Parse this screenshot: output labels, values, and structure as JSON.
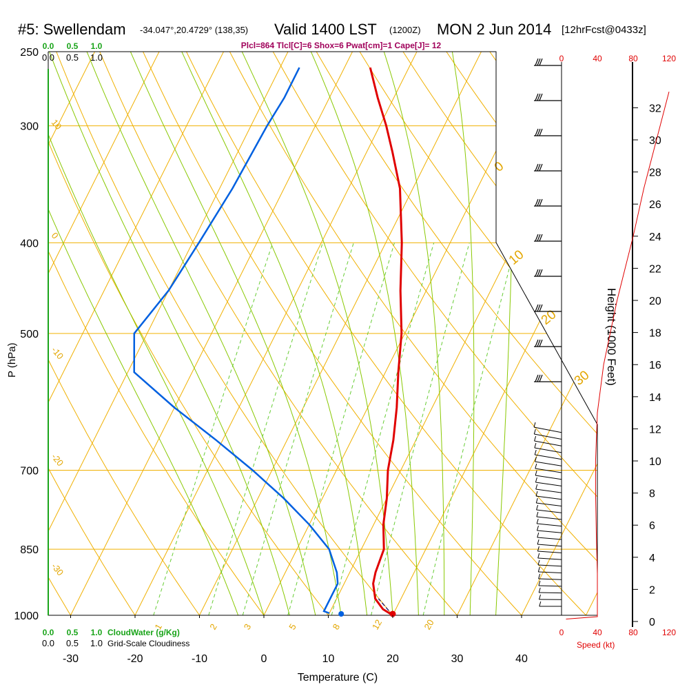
{
  "title": {
    "station": "#5: Swellendam",
    "coords": "-34.047°,20.4729° (138,35)",
    "valid": "Valid 1400 LST",
    "zulu": "(1200Z)",
    "date": "MON 2 Jun 2014",
    "forecast": "[12hrFcst@0433z]"
  },
  "indices": "Plcl=864 Tlcl[C]=6 Shox=6 Pwat[cm]=1 Cape[J]= 12",
  "colors": {
    "temperature": "#e00000",
    "dewpoint": "#0060e0",
    "isotherm_adiabat": "#f0b000",
    "moist_adiabat": "#88c800",
    "mixing_ratio": "#66cc33",
    "speed": "#e00000"
  },
  "chart_data": {
    "type": "skew-t",
    "xlabel": "Temperature (C)",
    "ylabel": "P (hPa)",
    "x_ticks": [
      "-30",
      "-20",
      "-10",
      "0",
      "10",
      "20",
      "30",
      "40"
    ],
    "x_tick_values": [
      -30,
      -20,
      -10,
      0,
      10,
      20,
      30,
      40
    ],
    "pressure_ticks": [
      "250",
      "300",
      "400",
      "500",
      "700",
      "850",
      "1000"
    ],
    "pressure_tick_values": [
      250,
      300,
      400,
      500,
      700,
      850,
      1000
    ],
    "height_axis_label": "Height (1000 Feet)",
    "height_ticks": [
      "0",
      "2",
      "4",
      "6",
      "8",
      "10",
      "12",
      "14",
      "16",
      "18",
      "20",
      "22",
      "24",
      "26",
      "28",
      "30",
      "32"
    ],
    "height_tick_values": [
      0,
      2,
      4,
      6,
      8,
      10,
      12,
      14,
      16,
      18,
      20,
      22,
      24,
      26,
      28,
      30,
      32
    ],
    "speed_axis_label": "Speed (kt)",
    "speed_ticks": [
      "0",
      "40",
      "80",
      "120"
    ],
    "cloud_scale_ticks": [
      "0.0",
      "0.5",
      "1.0"
    ],
    "cloudwater_label": "CloudWater (g/Kg)",
    "cloudiness_label": "Grid-Scale Cloudiness",
    "mixing_ratio_labels": [
      "1",
      "2",
      "3",
      "5",
      "8",
      "12",
      "20"
    ],
    "mixing_ratio_values": [
      1,
      2,
      3,
      5,
      8,
      12,
      20
    ],
    "dry_adiabat_labels": [
      "10",
      "0",
      "-10",
      "-20",
      "-30"
    ],
    "moist_adiabat_labels": [
      "0",
      "10",
      "20",
      "30"
    ],
    "temperature_profile": [
      {
        "p": 1000,
        "t": 20.0
      },
      {
        "p": 985,
        "t": 18.0
      },
      {
        "p": 960,
        "t": 16.0
      },
      {
        "p": 925,
        "t": 14.5
      },
      {
        "p": 900,
        "t": 14.0
      },
      {
        "p": 850,
        "t": 13.5
      },
      {
        "p": 800,
        "t": 11.5
      },
      {
        "p": 750,
        "t": 10.0
      },
      {
        "p": 700,
        "t": 8.0
      },
      {
        "p": 650,
        "t": 6.5
      },
      {
        "p": 600,
        "t": 4.5
      },
      {
        "p": 550,
        "t": 2.0
      },
      {
        "p": 500,
        "t": -0.5
      },
      {
        "p": 450,
        "t": -4.0
      },
      {
        "p": 400,
        "t": -7.5
      },
      {
        "p": 350,
        "t": -12.0
      },
      {
        "p": 320,
        "t": -16.0
      },
      {
        "p": 300,
        "t": -19.0
      },
      {
        "p": 280,
        "t": -22.5
      },
      {
        "p": 260,
        "t": -26.0
      }
    ],
    "dewpoint_profile": [
      {
        "p": 995,
        "t": 10.0
      },
      {
        "p": 990,
        "t": 9.0
      },
      {
        "p": 975,
        "t": 9.0
      },
      {
        "p": 950,
        "t": 9.0
      },
      {
        "p": 925,
        "t": 9.0
      },
      {
        "p": 900,
        "t": 8.0
      },
      {
        "p": 850,
        "t": 5.0
      },
      {
        "p": 800,
        "t": 0.0
      },
      {
        "p": 750,
        "t": -6.0
      },
      {
        "p": 700,
        "t": -13.0
      },
      {
        "p": 650,
        "t": -21.0
      },
      {
        "p": 600,
        "t": -30.0
      },
      {
        "p": 550,
        "t": -39.0
      },
      {
        "p": 500,
        "t": -42.0
      },
      {
        "p": 450,
        "t": -40.0
      },
      {
        "p": 400,
        "t": -39.0
      },
      {
        "p": 350,
        "t": -38.0
      },
      {
        "p": 300,
        "t": -37.5
      },
      {
        "p": 280,
        "t": -37.0
      },
      {
        "p": 260,
        "t": -37.0
      }
    ],
    "parcel_path": [
      {
        "p": 1000,
        "t": 20.0
      },
      {
        "p": 960,
        "t": 16.5
      }
    ],
    "surface_temperature": 20.0,
    "surface_dewpoint": 12.0,
    "wind_speed_profile": [
      {
        "h": 0.15,
        "kt": 5
      },
      {
        "h": 0.3,
        "kt": 40
      },
      {
        "h": 1.0,
        "kt": 40
      },
      {
        "h": 3.0,
        "kt": 40
      },
      {
        "h": 5.0,
        "kt": 39
      },
      {
        "h": 8.0,
        "kt": 38
      },
      {
        "h": 10.0,
        "kt": 38
      },
      {
        "h": 11.5,
        "kt": 39
      },
      {
        "h": 13.0,
        "kt": 40
      },
      {
        "h": 16.0,
        "kt": 47
      },
      {
        "h": 20.0,
        "kt": 62
      },
      {
        "h": 24.0,
        "kt": 80
      },
      {
        "h": 27.0,
        "kt": 92
      },
      {
        "h": 30.0,
        "kt": 106
      },
      {
        "h": 33.0,
        "kt": 120
      }
    ]
  }
}
